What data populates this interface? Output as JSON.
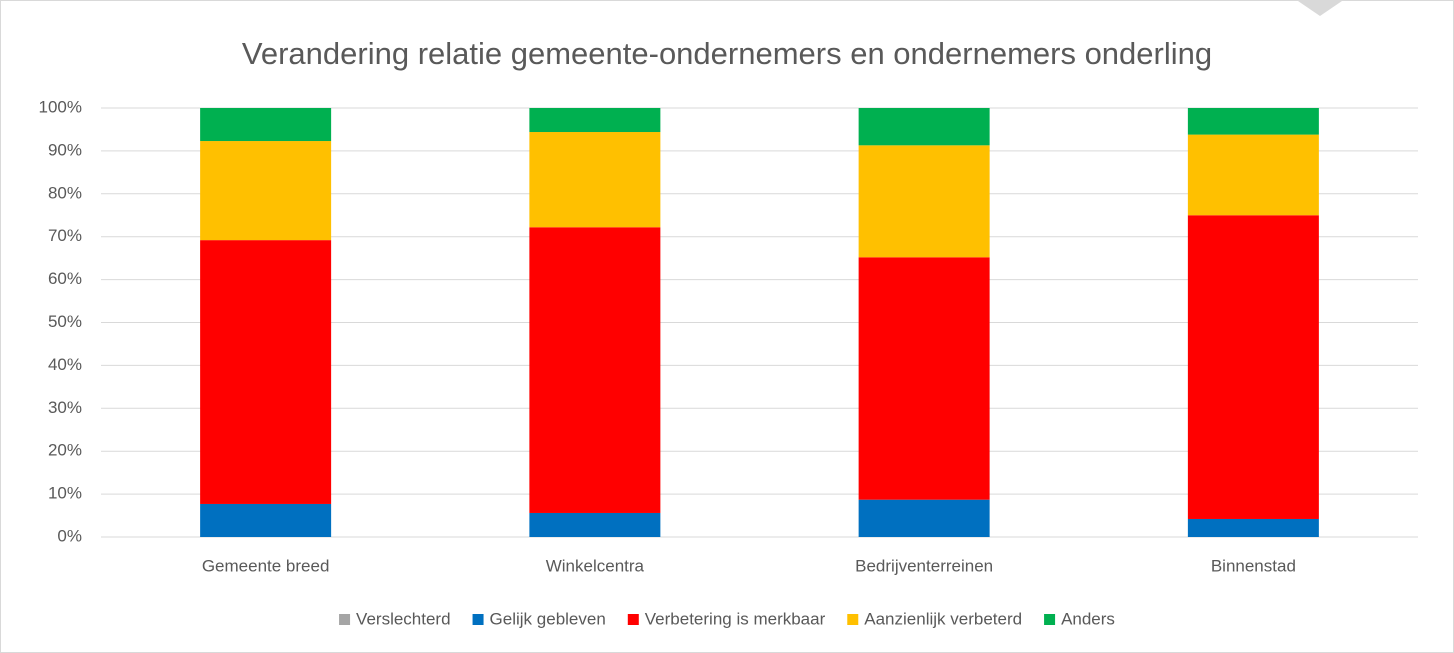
{
  "chart_data": {
    "type": "stacked_bar",
    "title": "Verandering relatie gemeente-ondernemers en ondernemers onderling",
    "categories": [
      "Gemeente breed",
      "Winkelcentra",
      "Bedrijventerreinen",
      "Binnenstad"
    ],
    "series": [
      {
        "name": "Verslechterd",
        "color": "#a5a5a5",
        "values": [
          0,
          0,
          0,
          0
        ]
      },
      {
        "name": "Gelijk gebleven",
        "color": "#0070c0",
        "values": [
          7.7,
          5.6,
          8.7,
          4.2
        ]
      },
      {
        "name": "Verbetering is merkbaar",
        "color": "#ff0000",
        "values": [
          61.5,
          66.6,
          56.5,
          70.8
        ]
      },
      {
        "name": "Aanzienlijk verbeterd",
        "color": "#ffc000",
        "values": [
          23.1,
          22.2,
          26.1,
          18.8
        ]
      },
      {
        "name": "Anders",
        "color": "#00b050",
        "values": [
          7.7,
          5.6,
          8.7,
          6.2
        ]
      }
    ],
    "ylim": [
      0,
      100
    ],
    "yticks": [
      {
        "value": 0,
        "label": "0%"
      },
      {
        "value": 10,
        "label": "10%"
      },
      {
        "value": 20,
        "label": "20%"
      },
      {
        "value": 30,
        "label": "30%"
      },
      {
        "value": 40,
        "label": "40%"
      },
      {
        "value": 50,
        "label": "50%"
      },
      {
        "value": 60,
        "label": "60%"
      },
      {
        "value": 70,
        "label": "70%"
      },
      {
        "value": 80,
        "label": "80%"
      },
      {
        "value": 90,
        "label": "90%"
      },
      {
        "value": 100,
        "label": "100%"
      }
    ],
    "grid": true,
    "legend": "bottom"
  }
}
